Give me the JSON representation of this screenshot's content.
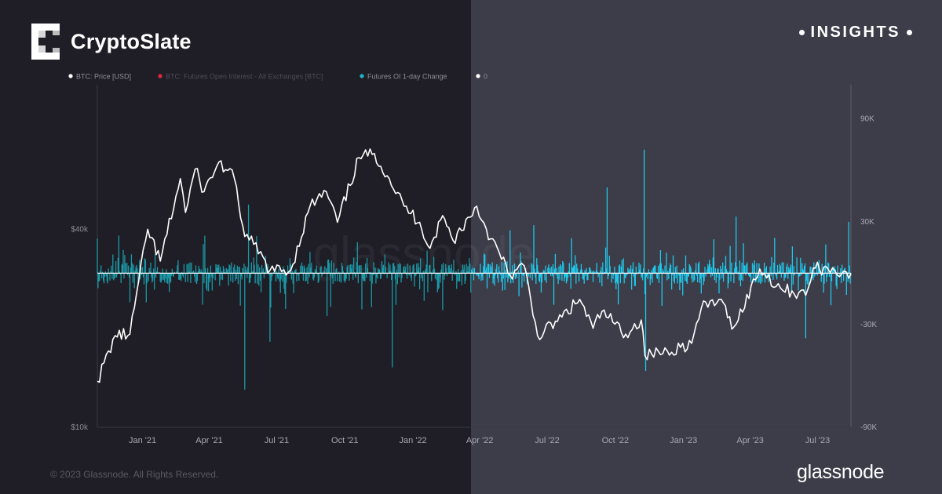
{
  "brand": {
    "name": "CryptoSlate",
    "tag": "INSIGHTS"
  },
  "footer": {
    "copyright": "© 2023 Glassnode. All Rights Reserved.",
    "provider": "glassnode"
  },
  "colors": {
    "price": "#ffffff",
    "oi": "#e0283f",
    "oi_change_dark": "#1b98a6",
    "oi_change_light": "#1ec8ea",
    "zero": "#ffffff"
  },
  "chart_data": {
    "type": "line",
    "legend": [
      {
        "label": "BTC: Price [USD]",
        "color": "#ffffff"
      },
      {
        "label": "BTC: Futures Open Interest - All Exchanges [BTC]",
        "color": "#e0283f"
      },
      {
        "label": "Futures OI 1-day Change",
        "color": "#1fb4c8"
      },
      {
        "label": "0",
        "color": "#ffffff"
      }
    ],
    "x_ticks": [
      "Jan '21",
      "Apr '21",
      "Jul '21",
      "Oct '21",
      "Jan '22",
      "Apr '22",
      "Jul '22",
      "Oct '22",
      "Jan '23",
      "Apr '23",
      "Jul '23"
    ],
    "x_range": [
      "2020-11-01",
      "2023-08-15"
    ],
    "y_left": {
      "scale": "log",
      "ticks": [
        "$40k",
        "$10k"
      ],
      "tick_values": [
        40000,
        10000
      ],
      "range": [
        10000,
        110000
      ]
    },
    "y_right": {
      "ticks": [
        "90K",
        "30K",
        "-30K",
        "-90K"
      ],
      "tick_values": [
        90000,
        30000,
        -30000,
        -90000
      ],
      "range": [
        -90000,
        110000
      ]
    },
    "series": [
      {
        "name": "BTC: Price [USD]",
        "x": [
          "2020-11-01",
          "2020-11-25",
          "2020-12-15",
          "2021-01-08",
          "2021-01-25",
          "2021-02-21",
          "2021-02-28",
          "2021-03-13",
          "2021-03-25",
          "2021-04-14",
          "2021-05-05",
          "2021-05-19",
          "2021-05-31",
          "2021-06-22",
          "2021-07-20",
          "2021-08-15",
          "2021-09-06",
          "2021-09-21",
          "2021-10-20",
          "2021-11-10",
          "2021-11-30",
          "2021-12-20",
          "2022-01-10",
          "2022-01-24",
          "2022-02-10",
          "2022-02-24",
          "2022-03-28",
          "2022-04-10",
          "2022-05-12",
          "2022-05-31",
          "2022-06-18",
          "2022-07-15",
          "2022-08-14",
          "2022-09-01",
          "2022-09-13",
          "2022-10-15",
          "2022-11-05",
          "2022-11-10",
          "2022-12-10",
          "2023-01-12",
          "2023-01-25",
          "2023-02-18",
          "2023-03-10",
          "2023-04-14",
          "2023-05-12",
          "2023-06-15",
          "2023-06-25",
          "2023-07-15",
          "2023-08-15"
        ],
        "y": [
          13800,
          19000,
          19200,
          40000,
          32000,
          57000,
          45000,
          61000,
          52000,
          64000,
          57000,
          38000,
          36000,
          30000,
          30000,
          47000,
          52000,
          42000,
          66000,
          68000,
          57000,
          47000,
          42000,
          35000,
          44000,
          37000,
          47000,
          40000,
          29000,
          31000,
          19000,
          21000,
          24500,
          20000,
          22500,
          19200,
          21200,
          16500,
          17100,
          18000,
          23000,
          24500,
          20200,
          30300,
          26500,
          25200,
          30500,
          30300,
          29300
        ]
      },
      {
        "name": "Futures OI 1-day Change",
        "y_axis": "right",
        "peaks": [
          {
            "x": "2021-05-19",
            "y": -68000
          },
          {
            "x": "2021-05-24",
            "y": 40000
          },
          {
            "x": "2021-06-22",
            "y": -40000
          },
          {
            "x": "2021-09-07",
            "y": -25000
          },
          {
            "x": "2021-12-04",
            "y": -55000
          },
          {
            "x": "2022-05-12",
            "y": 25000
          },
          {
            "x": "2022-06-13",
            "y": 28000
          },
          {
            "x": "2022-09-20",
            "y": 50000
          },
          {
            "x": "2022-11-09",
            "y": 72000
          },
          {
            "x": "2022-11-11",
            "y": -57000
          },
          {
            "x": "2023-03-13",
            "y": 33000
          },
          {
            "x": "2023-06-15",
            "y": -38000
          },
          {
            "x": "2023-08-12",
            "y": 30000
          }
        ]
      }
    ],
    "grid": false,
    "legend_position": "top-left"
  }
}
